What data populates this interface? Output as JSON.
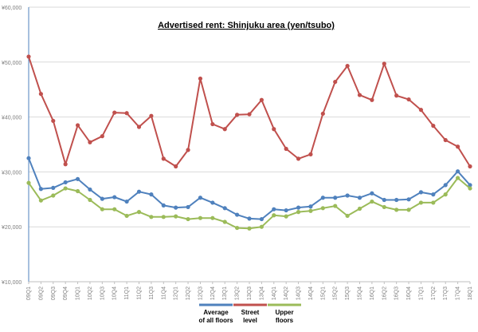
{
  "chart_data": {
    "type": "line",
    "title": "Advertised rent: Shinjuku area (yen/tsubo)",
    "xlabel": "",
    "ylabel": "",
    "ylim": [
      10000,
      60000
    ],
    "y_ticks": [
      "¥10,000",
      "¥20,000",
      "¥30,000",
      "¥40,000",
      "¥50,000",
      "¥60,000"
    ],
    "y_tick_values": [
      10000,
      20000,
      30000,
      40000,
      50000,
      60000
    ],
    "grid": true,
    "legend_position": "bottom",
    "categories": [
      "09Q1",
      "09Q2",
      "09Q3",
      "09Q4",
      "10Q1",
      "10Q2",
      "10Q3",
      "10Q4",
      "11Q1",
      "11Q2",
      "11Q3",
      "11Q4",
      "12Q1",
      "12Q2",
      "12Q3",
      "12Q4",
      "13Q1",
      "13Q2",
      "13Q3",
      "13Q4",
      "14Q1",
      "14Q2",
      "14Q3",
      "14Q4",
      "15Q1",
      "15Q2",
      "15Q3",
      "15Q4",
      "16Q1",
      "16Q2",
      "16Q3",
      "16Q4",
      "17Q1",
      "17Q2",
      "17Q3",
      "17Q4",
      "18Q1"
    ],
    "x_tick_labels": [
      "09Q1",
      "09Q2",
      "09Q3",
      "09Q4",
      "10Q1",
      "10Q2",
      "10Q3",
      "10Q4",
      "11Q1",
      "11Q2",
      "11Q3",
      "11Q4",
      "12Q1",
      "12Q2",
      "12Q3",
      "12Q4",
      "13Q1",
      "13Q2",
      "13Q3",
      "13Q4",
      "14Q1",
      "14Q2",
      "14Q3",
      "14Q4",
      "15Q1",
      "15Q2",
      "15Q3",
      "15Q4",
      "16Q1",
      "16Q2",
      "16Q3",
      "16Q4",
      "17Q1",
      "17Q2",
      "17Q3",
      "17Q4",
      "18Q1"
    ],
    "series": [
      {
        "name": "Average of all floors",
        "legend_lines": [
          "Average",
          "of all floors"
        ],
        "color": "#4f81bd",
        "values": [
          32500,
          26900,
          27100,
          28100,
          28700,
          26800,
          25100,
          25400,
          24600,
          26400,
          25900,
          23900,
          23500,
          23600,
          25300,
          24400,
          23400,
          22200,
          21500,
          21400,
          23200,
          23000,
          23500,
          23700,
          25300,
          25300,
          25700,
          25300,
          26100,
          24900,
          24900,
          25000,
          26300,
          25900,
          27600,
          30100,
          27600
        ]
      },
      {
        "name": "Street level",
        "legend_lines": [
          "Street",
          "level"
        ],
        "color": "#c0504d",
        "values": [
          51000,
          44200,
          39300,
          31400,
          38500,
          35400,
          36500,
          40800,
          40700,
          38200,
          40200,
          32400,
          31000,
          34000,
          47000,
          38700,
          37800,
          40400,
          40500,
          43100,
          37800,
          34200,
          32400,
          33200,
          40600,
          46400,
          49300,
          44000,
          43100,
          49700,
          43900,
          43200,
          41300,
          38400,
          35800,
          34600,
          31000
        ]
      },
      {
        "name": "Upper floors",
        "legend_lines": [
          "Upper",
          "floors"
        ],
        "color": "#9bbb59",
        "values": [
          28000,
          24800,
          25700,
          27000,
          26500,
          24900,
          23200,
          23200,
          22000,
          22700,
          21800,
          21800,
          21900,
          21400,
          21600,
          21600,
          20900,
          19800,
          19700,
          20000,
          22100,
          21900,
          22700,
          22900,
          23400,
          23800,
          22000,
          23300,
          24600,
          23600,
          23100,
          23100,
          24400,
          24400,
          25900,
          28900,
          27000
        ]
      }
    ]
  }
}
